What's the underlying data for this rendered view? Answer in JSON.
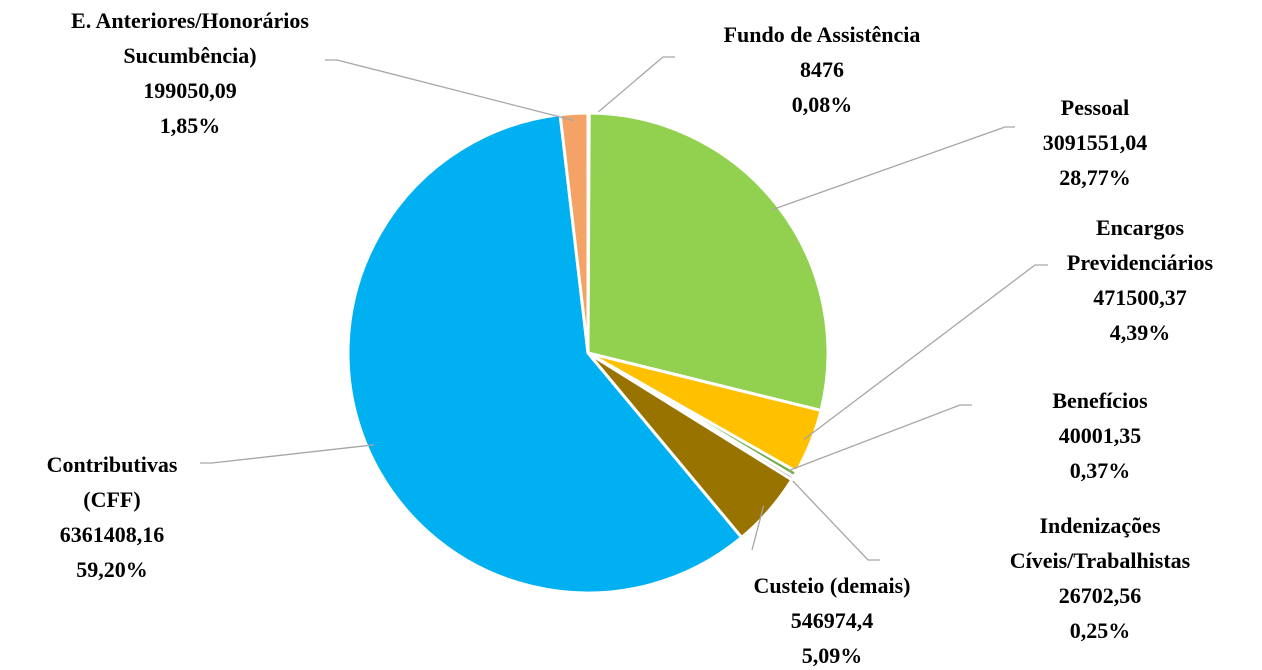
{
  "chart_data": {
    "type": "pie",
    "categories": [
      "Fundo de Assistência",
      "Pessoal",
      "Encargos Previdenciários",
      "Benefícios",
      "Indenizações Cíveis/Trabalhistas",
      "Custeio (demais)",
      "Contributivas (CFF)",
      "E. Anteriores/Honorários Sucumbência)"
    ],
    "values": [
      8476,
      3091551.04,
      471500.37,
      40001.35,
      26702.56,
      546974.4,
      6361408.16,
      199050.09
    ],
    "value_labels": [
      "8476",
      "3091551,04",
      "471500,37",
      "40001,35",
      "26702,56",
      "546974,4",
      "6361408,16",
      "199050,09"
    ],
    "percents": [
      0.08,
      28.77,
      4.39,
      0.37,
      0.25,
      5.09,
      59.2,
      1.85
    ],
    "percent_labels": [
      "0,08%",
      "28,77%",
      "4,39%",
      "0,37%",
      "0,25%",
      "5,09%",
      "59,20%",
      "1,85%"
    ],
    "colors": [
      "#4472c4",
      "#92d050",
      "#ffc000",
      "#70ad47",
      "#a5a5a5",
      "#997300",
      "#00b0f0",
      "#f4a266"
    ]
  }
}
